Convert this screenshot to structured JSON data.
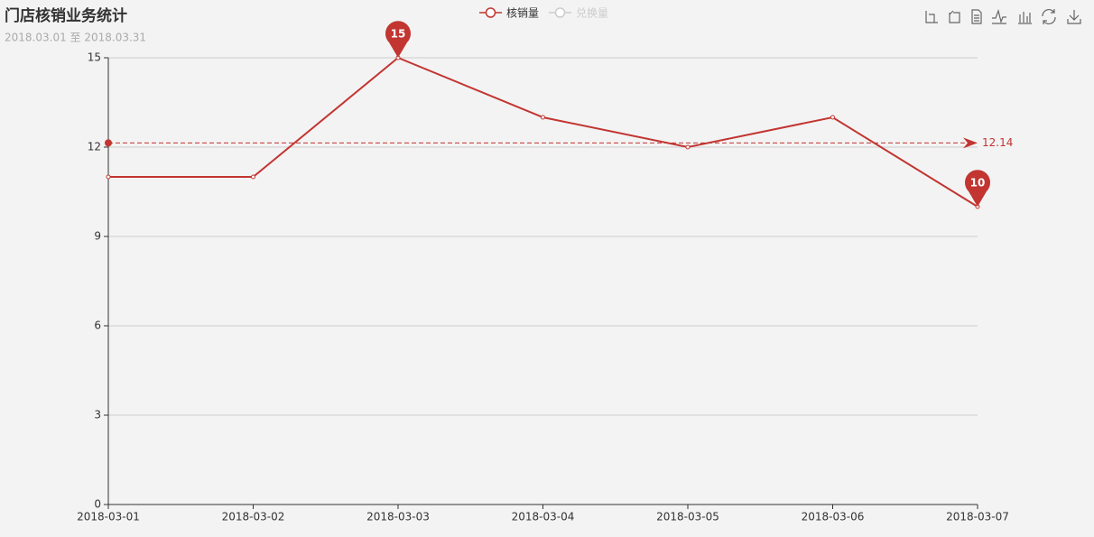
{
  "chart_data": {
    "type": "line",
    "title": "门店核销业务统计",
    "subtitle": "2018.03.01 至 2018.03.31",
    "categories": [
      "2018-03-01",
      "2018-03-02",
      "2018-03-03",
      "2018-03-04",
      "2018-03-05",
      "2018-03-06",
      "2018-03-07"
    ],
    "series": [
      {
        "name": "核销量",
        "color": "#c23531",
        "values": [
          11,
          11,
          15,
          13,
          12,
          13,
          10
        ]
      },
      {
        "name": "兑换量",
        "color": "#cccccc",
        "visible": false
      }
    ],
    "average": 12.14,
    "ylim": [
      0,
      15
    ],
    "yticks": [
      0,
      3,
      6,
      9,
      12,
      15
    ],
    "grid": true
  }
}
